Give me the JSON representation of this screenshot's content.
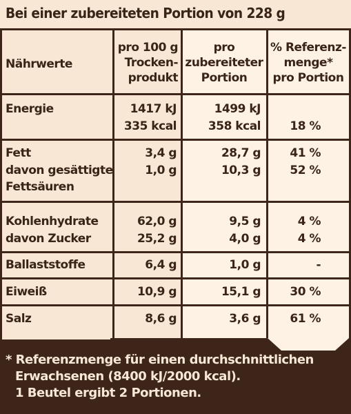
{
  "header": "Bei einer zubereiteten Portion von 228 g",
  "columns": {
    "c1": "Nährwerte",
    "c2": [
      "pro 100 g",
      "Trocken-",
      "produkt"
    ],
    "c3": [
      "pro",
      "zubereiteter",
      "Portion"
    ],
    "c4": [
      "% Referenz-",
      "menge*",
      "pro Portion"
    ]
  },
  "rows": {
    "energie": {
      "name": "Energie",
      "dry_kj": "1417 kJ",
      "dry_kcal": "335 kcal",
      "por_kj": "1499 kJ",
      "por_kcal": "358 kcal",
      "ref": "18 %"
    },
    "fett": {
      "name": "Fett",
      "dry": "3,4 g",
      "por": "28,7 g",
      "ref": "41 %"
    },
    "gesaettigt": {
      "name1": "davon gesättigte",
      "name2": "Fettsäuren",
      "dry": "1,0 g",
      "por": "10,3 g",
      "ref": "52 %"
    },
    "kohlenhydrate": {
      "name": "Kohlenhydrate",
      "dry": "62,0 g",
      "por": "9,5 g",
      "ref": "4 %"
    },
    "zucker": {
      "name": "davon Zucker",
      "dry": "25,2 g",
      "por": "4,0 g",
      "ref": "4 %"
    },
    "ballaststoffe": {
      "name": "Ballaststoffe",
      "dry": "6,4 g",
      "por": "1,0 g",
      "ref": "-"
    },
    "eiweiss": {
      "name": "Eiweiß",
      "dry": "10,9 g",
      "por": "15,1 g",
      "ref": "30 %"
    },
    "salz": {
      "name": "Salz",
      "dry": "8,6 g",
      "por": "3,6 g",
      "ref": "61 %"
    }
  },
  "footer": [
    "* Referenzmenge für einen durchschnittlichen",
    "Erwachsenen (8400 kJ/2000 kcal).",
    "1 Beutel ergibt 2 Portionen."
  ],
  "colors": {
    "background": "#f7e7d4",
    "highlight": "#fdf2e4",
    "ink": "#3d2519"
  }
}
